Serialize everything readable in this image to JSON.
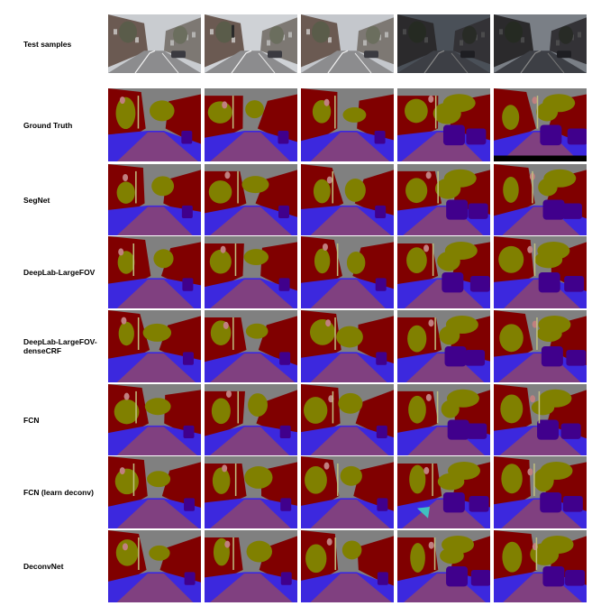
{
  "figure": {
    "rows": [
      {
        "label": "Test samples",
        "kind": "photo"
      },
      {
        "label": "Ground Truth",
        "kind": "seg",
        "variant": 0
      },
      {
        "label": "SegNet",
        "kind": "seg",
        "variant": 1
      },
      {
        "label": "DeepLab-LargeFOV",
        "kind": "seg",
        "variant": 2
      },
      {
        "label": "DeepLab-LargeFOV-\ndenseCRF",
        "kind": "seg",
        "variant": 3
      },
      {
        "label": "FCN",
        "kind": "seg",
        "variant": 4
      },
      {
        "label": "FCN (learn deconv)",
        "kind": "seg",
        "variant": 5
      },
      {
        "label": "DeconvNet",
        "kind": "seg",
        "variant": 6
      }
    ],
    "columns": 5,
    "class_colors": {
      "sky": "#808080",
      "building": "#800000",
      "tree": "#808000",
      "road": "#804080",
      "pavement": "#3c28de",
      "car": "#40008c",
      "sign_symbol": "#c08080",
      "pole": "#c0c080",
      "fence": "#404080",
      "pedestrian": "#40c0c0",
      "unlabelled": "#000000"
    }
  }
}
